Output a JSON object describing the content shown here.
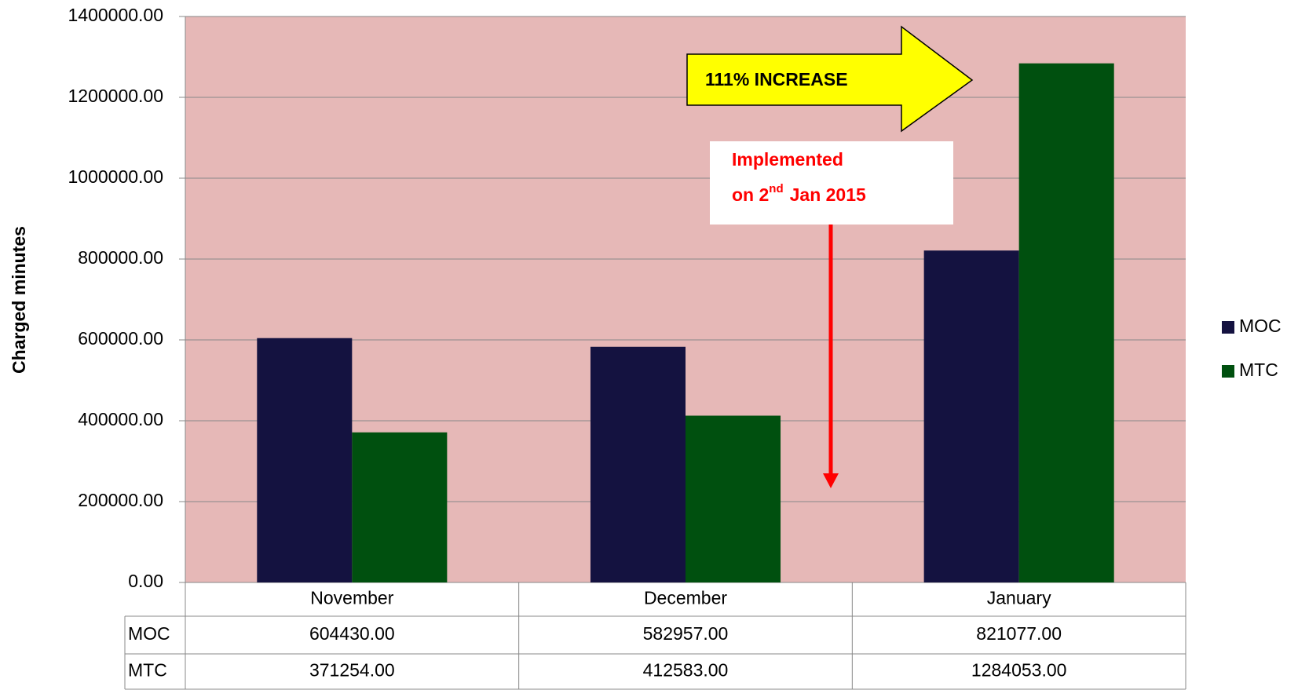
{
  "chart_data": {
    "type": "bar",
    "y_label": "Charged minutes",
    "categories": [
      "November",
      "December",
      "January"
    ],
    "series": [
      {
        "name": "MOC",
        "color": "#141240",
        "values": [
          604430,
          582957,
          821077
        ],
        "value_labels": [
          "604430.00",
          "582957.00",
          "821077.00"
        ]
      },
      {
        "name": "MTC",
        "color": "#00500f",
        "values": [
          371254,
          412583,
          1284053
        ],
        "value_labels": [
          "371254.00",
          "412583.00",
          "1284053.00"
        ]
      }
    ],
    "ylim": [
      0,
      1400000
    ],
    "yticks": [
      {
        "value": 0,
        "label": "0.00"
      },
      {
        "value": 200000,
        "label": "200000.00"
      },
      {
        "value": 400000,
        "label": "400000.00"
      },
      {
        "value": 600000,
        "label": "600000.00"
      },
      {
        "value": 800000,
        "label": "800000.00"
      },
      {
        "value": 1000000,
        "label": "1000000.00"
      },
      {
        "value": 1200000,
        "label": "1200000.00"
      },
      {
        "value": 1400000,
        "label": "1400000.00"
      }
    ],
    "grid": true,
    "plot_color": "#e6b8b7",
    "annotations": {
      "increase": "111% INCREASE",
      "implemented": {
        "line1": "Implemented",
        "line2": [
          "on 2",
          "nd",
          "Jan 2015"
        ]
      }
    }
  }
}
